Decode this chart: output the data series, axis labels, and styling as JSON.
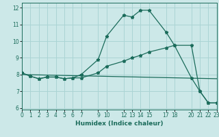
{
  "xlabel": "Humidex (Indice chaleur)",
  "ylabel": "",
  "bg_color": "#cce8e8",
  "line_color": "#1a6b5a",
  "grid_color": "#aad4d4",
  "xlim": [
    0,
    23
  ],
  "ylim": [
    5.9,
    12.3
  ],
  "xticks": [
    0,
    1,
    2,
    3,
    4,
    5,
    6,
    7,
    9,
    10,
    12,
    13,
    14,
    15,
    17,
    18,
    20,
    21,
    22,
    23
  ],
  "yticks": [
    6,
    7,
    8,
    9,
    10,
    11,
    12
  ],
  "lines": [
    {
      "x": [
        0,
        1,
        2,
        3,
        4,
        5,
        6,
        7,
        9,
        10,
        12,
        13,
        14,
        15,
        17,
        18,
        20,
        21,
        22,
        23
      ],
      "y": [
        8.1,
        7.9,
        7.75,
        7.85,
        7.85,
        7.75,
        7.8,
        8.0,
        8.9,
        10.3,
        11.55,
        11.45,
        11.85,
        11.85,
        10.55,
        9.75,
        7.8,
        7.0,
        6.3,
        6.3
      ],
      "has_markers": true
    },
    {
      "x": [
        0,
        1,
        2,
        3,
        4,
        5,
        6,
        7,
        9,
        10,
        12,
        13,
        14,
        15,
        17,
        18,
        20,
        21,
        22,
        23
      ],
      "y": [
        8.1,
        7.9,
        7.75,
        7.85,
        7.85,
        7.75,
        7.8,
        7.8,
        8.1,
        8.5,
        8.8,
        9.0,
        9.15,
        9.35,
        9.6,
        9.75,
        9.75,
        7.0,
        6.3,
        6.3
      ],
      "has_markers": true
    },
    {
      "x": [
        0,
        23
      ],
      "y": [
        8.0,
        7.75
      ],
      "has_markers": false
    }
  ]
}
